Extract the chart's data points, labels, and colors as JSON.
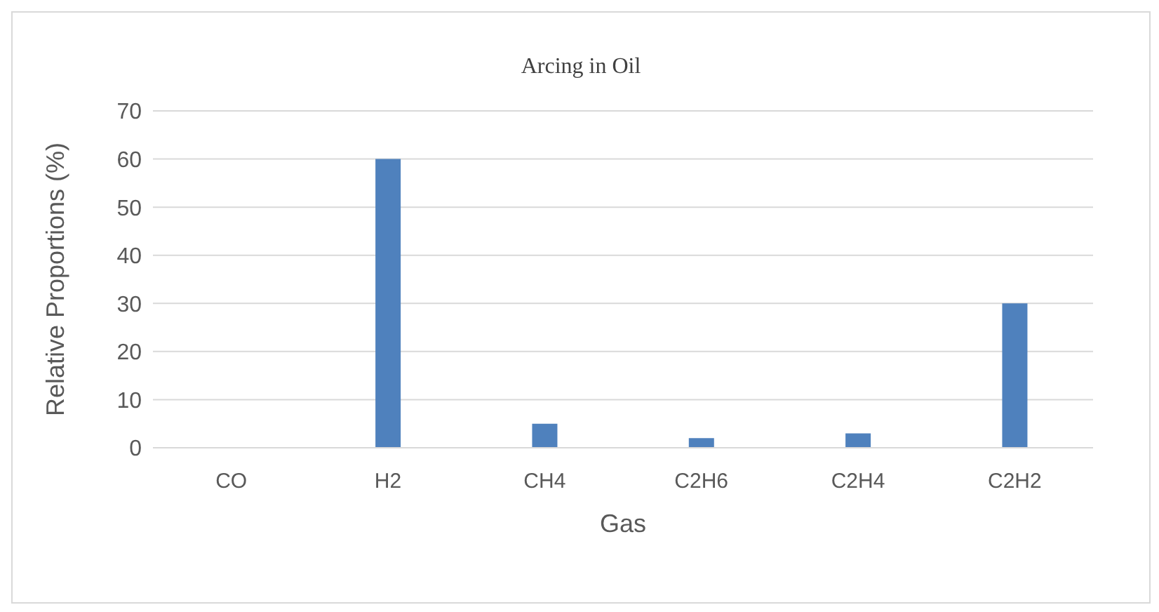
{
  "chart_data": {
    "type": "bar",
    "title": "Arcing in Oil",
    "xlabel": "Gas",
    "ylabel": "Relative Proportions (%)",
    "categories": [
      "CO",
      "H2",
      "CH4",
      "C2H6",
      "C2H4",
      "C2H2"
    ],
    "values": [
      0,
      60,
      5,
      2,
      3,
      30
    ],
    "color": "#4f81bd",
    "ylim": [
      0,
      70
    ],
    "yticks": [
      0,
      10,
      20,
      30,
      40,
      50,
      60,
      70
    ],
    "grid": "y"
  }
}
